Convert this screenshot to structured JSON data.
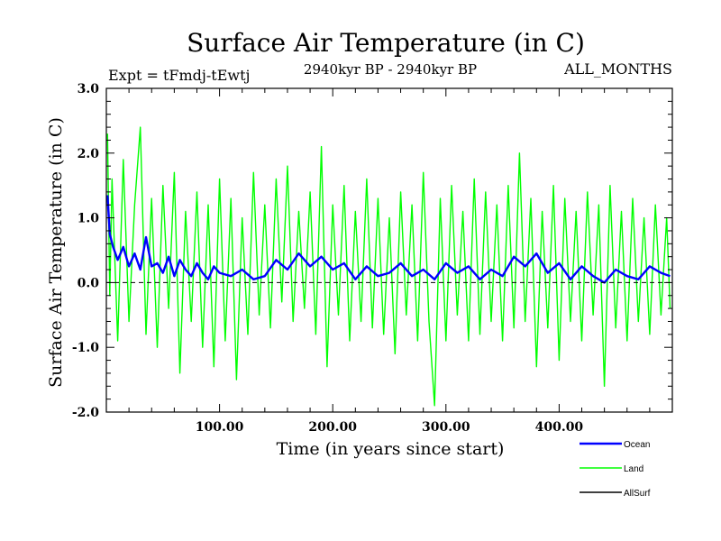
{
  "chart_data": {
    "type": "line",
    "title": "Surface Air Temperature (in C)",
    "experiment_label": "Expt = tFmdj-tEwtj",
    "period_label": "2940kyr BP - 2940kyr BP",
    "months_label": "ALL_MONTHS",
    "xlabel": "Time (in years since start)",
    "ylabel": "Surface Air Temperature (in C)",
    "xlim": [
      0,
      500
    ],
    "ylim": [
      -2.0,
      3.0
    ],
    "xticks": [
      100,
      200,
      300,
      400
    ],
    "xtick_labels": [
      "100.00",
      "200.00",
      "300.00",
      "400.00"
    ],
    "yticks": [
      -2.0,
      -1.0,
      0.0,
      1.0,
      2.0,
      3.0
    ],
    "ytick_labels": [
      "-2.0",
      "-1.0",
      "0.0",
      "1.0",
      "2.0",
      "3.0"
    ],
    "zero_line": true,
    "legend_position": "bottom-right",
    "series": [
      {
        "name": "Land",
        "color": "#00ff00",
        "x": [
          1,
          3,
          5,
          10,
          15,
          20,
          25,
          30,
          35,
          40,
          45,
          50,
          55,
          60,
          65,
          70,
          75,
          80,
          85,
          90,
          95,
          100,
          105,
          110,
          115,
          120,
          125,
          130,
          135,
          140,
          145,
          150,
          155,
          160,
          165,
          170,
          175,
          180,
          185,
          190,
          195,
          200,
          205,
          210,
          215,
          220,
          225,
          230,
          235,
          240,
          245,
          250,
          255,
          260,
          265,
          270,
          275,
          280,
          285,
          290,
          295,
          300,
          305,
          310,
          315,
          320,
          325,
          330,
          335,
          340,
          345,
          350,
          355,
          360,
          365,
          370,
          375,
          380,
          385,
          390,
          395,
          400,
          405,
          410,
          415,
          420,
          425,
          430,
          435,
          440,
          445,
          450,
          455,
          460,
          465,
          470,
          475,
          480,
          485,
          490,
          495,
          498
        ],
        "values": [
          2.3,
          -0.2,
          1.6,
          -0.9,
          1.9,
          -0.6,
          1.2,
          2.4,
          -0.8,
          1.3,
          -1.0,
          1.5,
          -0.4,
          1.7,
          -1.4,
          1.1,
          -0.6,
          1.4,
          -1.0,
          1.2,
          -1.3,
          1.6,
          -0.9,
          1.3,
          -1.5,
          1.0,
          -0.8,
          1.7,
          -0.5,
          1.2,
          -0.7,
          1.6,
          -0.3,
          1.8,
          -0.6,
          1.1,
          -0.4,
          1.4,
          -0.8,
          2.1,
          -1.3,
          1.2,
          -0.5,
          1.5,
          -0.9,
          1.1,
          -0.6,
          1.6,
          -0.7,
          1.3,
          -0.8,
          1.0,
          -1.1,
          1.4,
          -0.5,
          1.2,
          -0.9,
          1.7,
          -0.6,
          -1.9,
          1.3,
          -0.9,
          1.5,
          -0.5,
          1.1,
          -0.9,
          1.6,
          -0.8,
          1.4,
          -0.6,
          1.2,
          -0.9,
          1.5,
          -0.7,
          2.0,
          -0.6,
          1.3,
          -1.3,
          1.1,
          -0.7,
          1.5,
          -1.2,
          1.3,
          -0.6,
          1.1,
          -0.9,
          1.4,
          -0.5,
          1.2,
          -1.6,
          1.5,
          -0.7,
          1.1,
          -0.9,
          1.3,
          -0.6,
          1.0,
          -0.8,
          1.2,
          -0.5,
          1.0,
          -0.4
        ]
      },
      {
        "name": "Ocean",
        "color": "#0000ff",
        "x": [
          1,
          3,
          6,
          10,
          15,
          20,
          25,
          30,
          35,
          40,
          45,
          50,
          55,
          60,
          65,
          70,
          75,
          80,
          85,
          90,
          95,
          100,
          110,
          120,
          130,
          140,
          150,
          160,
          170,
          180,
          190,
          200,
          210,
          220,
          230,
          240,
          250,
          260,
          270,
          280,
          290,
          300,
          310,
          320,
          330,
          340,
          350,
          360,
          370,
          380,
          390,
          400,
          410,
          420,
          430,
          440,
          450,
          460,
          470,
          480,
          490,
          498
        ],
        "values": [
          1.35,
          0.75,
          0.55,
          0.35,
          0.55,
          0.25,
          0.45,
          0.2,
          0.7,
          0.25,
          0.3,
          0.15,
          0.4,
          0.1,
          0.35,
          0.2,
          0.1,
          0.3,
          0.15,
          0.05,
          0.25,
          0.15,
          0.1,
          0.2,
          0.05,
          0.1,
          0.35,
          0.2,
          0.45,
          0.25,
          0.4,
          0.2,
          0.3,
          0.05,
          0.25,
          0.1,
          0.15,
          0.3,
          0.1,
          0.2,
          0.05,
          0.3,
          0.15,
          0.25,
          0.05,
          0.2,
          0.1,
          0.4,
          0.25,
          0.45,
          0.15,
          0.3,
          0.05,
          0.25,
          0.1,
          0.0,
          0.2,
          0.1,
          0.05,
          0.25,
          0.15,
          0.1
        ]
      },
      {
        "name": "AllSurf",
        "color": "#000000",
        "x": [],
        "values": []
      }
    ],
    "legend": [
      {
        "label": "Ocean",
        "color": "#0000ff"
      },
      {
        "label": "Land",
        "color": "#00ff00"
      },
      {
        "label": "AllSurf",
        "color": "#000000"
      }
    ]
  }
}
